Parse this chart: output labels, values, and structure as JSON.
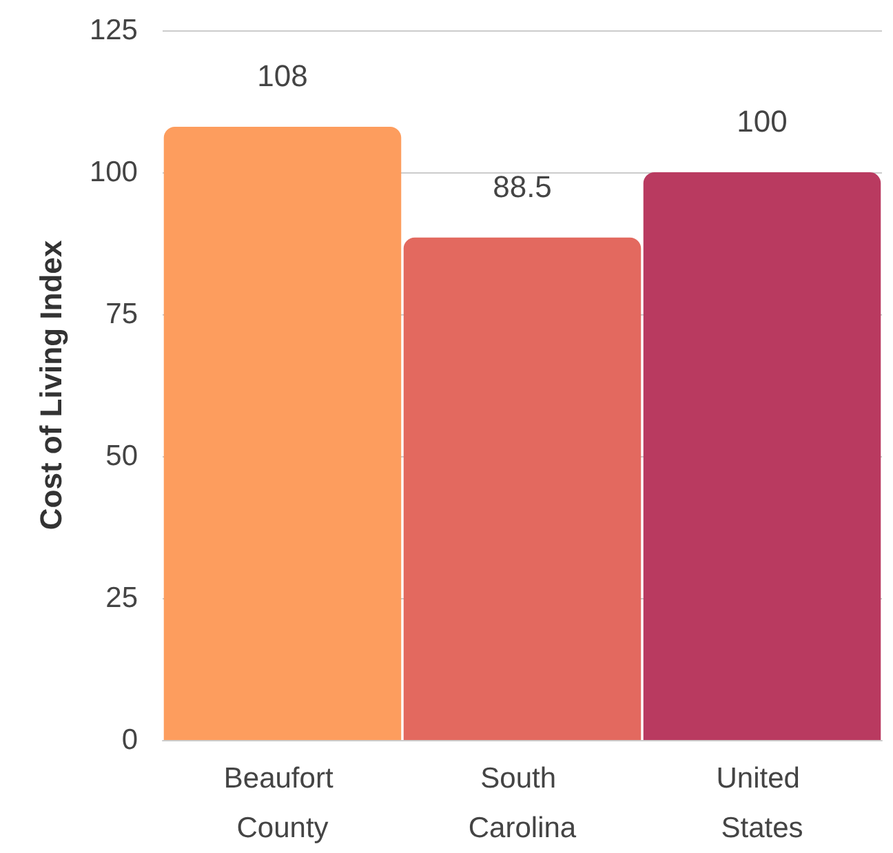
{
  "chart_data": {
    "type": "bar",
    "ylabel": "Cost of Living Index",
    "categories": [
      "Beaufort County",
      "South Carolina",
      "United States"
    ],
    "values": [
      108,
      88.5,
      100
    ],
    "colors": [
      "#fd9d5e",
      "#e3695f",
      "#b93a60"
    ],
    "ylim": [
      0,
      125
    ],
    "yticks": [
      0,
      25,
      50,
      75,
      100,
      125
    ],
    "grid": "y",
    "data_labels": true
  }
}
